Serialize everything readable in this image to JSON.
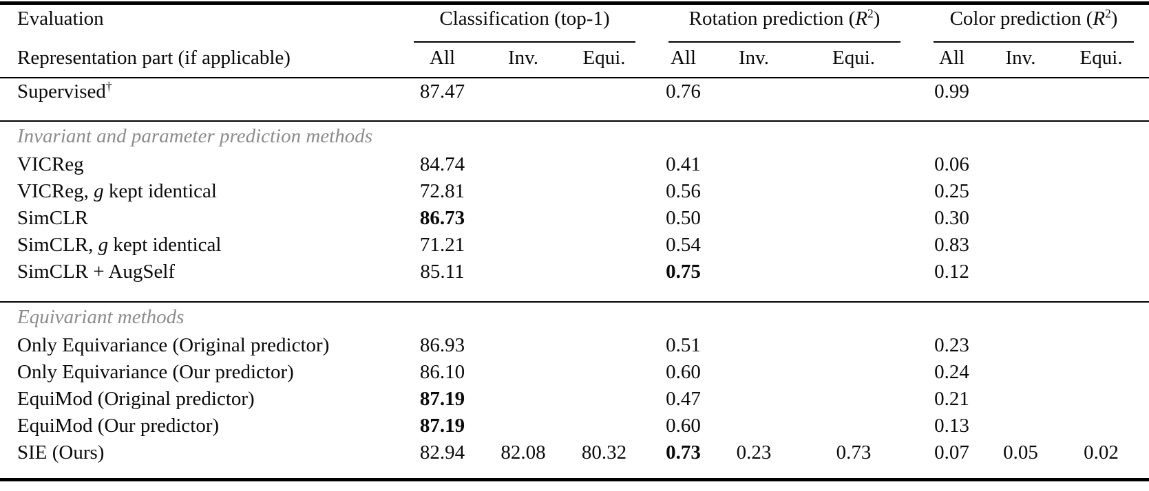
{
  "colors": {
    "background": "#ffffff",
    "text": "#0a0a0a",
    "section_text": "#8c8c8c",
    "rule": "#000000"
  },
  "table": {
    "header": {
      "row1_label": "Evaluation",
      "row2_label": "Representation part (if applicable)",
      "groups": [
        {
          "label_spans": [
            {
              "t": "Classification (top-1)"
            }
          ],
          "sub": [
            "All",
            "Inv.",
            "Equi."
          ]
        },
        {
          "label_spans": [
            {
              "t": "Rotation prediction ("
            },
            {
              "t": "R",
              "i": true
            },
            {
              "t": "2",
              "sup": true
            },
            {
              "t": ")"
            }
          ],
          "sub": [
            "All",
            "Inv.",
            "Equi."
          ]
        },
        {
          "label_spans": [
            {
              "t": "Color prediction ("
            },
            {
              "t": "R",
              "i": true
            },
            {
              "t": "2",
              "sup": true
            },
            {
              "t": ")"
            }
          ],
          "sub": [
            "All",
            "Inv.",
            "Equi."
          ]
        }
      ]
    },
    "rows": [
      {
        "type": "data",
        "rule_below": true,
        "label_spans": [
          {
            "t": "Supervised"
          },
          {
            "t": "†",
            "sup": true
          }
        ],
        "values": [
          {
            "v": "87.47"
          },
          {},
          {},
          {
            "v": "0.76"
          },
          {},
          {},
          {
            "v": "0.99"
          },
          {},
          {}
        ]
      },
      {
        "type": "section",
        "label": "Invariant and parameter prediction methods"
      },
      {
        "type": "data",
        "label_spans": [
          {
            "t": "VICReg"
          }
        ],
        "values": [
          {
            "v": "84.74"
          },
          {},
          {},
          {
            "v": "0.41"
          },
          {},
          {},
          {
            "v": "0.06"
          },
          {},
          {}
        ]
      },
      {
        "type": "data",
        "label_spans": [
          {
            "t": "VICReg, "
          },
          {
            "t": "g",
            "i": true
          },
          {
            "t": " kept identical"
          }
        ],
        "values": [
          {
            "v": "72.81"
          },
          {},
          {},
          {
            "v": "0.56"
          },
          {},
          {},
          {
            "v": "0.25"
          },
          {},
          {}
        ]
      },
      {
        "type": "data",
        "label_spans": [
          {
            "t": "SimCLR"
          }
        ],
        "values": [
          {
            "v": "86.73",
            "b": true
          },
          {},
          {},
          {
            "v": "0.50"
          },
          {},
          {},
          {
            "v": "0.30"
          },
          {},
          {}
        ]
      },
      {
        "type": "data",
        "label_spans": [
          {
            "t": "SimCLR, "
          },
          {
            "t": "g",
            "i": true
          },
          {
            "t": " kept identical"
          }
        ],
        "values": [
          {
            "v": "71.21"
          },
          {},
          {},
          {
            "v": "0.54"
          },
          {},
          {},
          {
            "v": "0.83"
          },
          {},
          {}
        ]
      },
      {
        "type": "data",
        "rule_below": true,
        "label_spans": [
          {
            "t": "SimCLR + AugSelf"
          }
        ],
        "values": [
          {
            "v": "85.11"
          },
          {},
          {},
          {
            "v": "0.75",
            "b": true
          },
          {},
          {},
          {
            "v": "0.12"
          },
          {},
          {}
        ]
      },
      {
        "type": "section",
        "label": "Equivariant methods"
      },
      {
        "type": "data",
        "label_spans": [
          {
            "t": "Only Equivariance (Original predictor)"
          }
        ],
        "values": [
          {
            "v": "86.93"
          },
          {},
          {},
          {
            "v": "0.51"
          },
          {},
          {},
          {
            "v": "0.23"
          },
          {},
          {}
        ]
      },
      {
        "type": "data",
        "label_spans": [
          {
            "t": "Only Equivariance (Our predictor)"
          }
        ],
        "values": [
          {
            "v": "86.10"
          },
          {},
          {},
          {
            "v": "0.60"
          },
          {},
          {},
          {
            "v": "0.24"
          },
          {},
          {}
        ]
      },
      {
        "type": "data",
        "label_spans": [
          {
            "t": "EquiMod (Original predictor)"
          }
        ],
        "values": [
          {
            "v": "87.19",
            "b": true
          },
          {},
          {},
          {
            "v": "0.47"
          },
          {},
          {},
          {
            "v": "0.21"
          },
          {},
          {}
        ]
      },
      {
        "type": "data",
        "label_spans": [
          {
            "t": "EquiMod (Our predictor)"
          }
        ],
        "values": [
          {
            "v": "87.19",
            "b": true
          },
          {},
          {},
          {
            "v": "0.60"
          },
          {},
          {},
          {
            "v": "0.13"
          },
          {},
          {}
        ]
      },
      {
        "type": "data",
        "last": true,
        "label_spans": [
          {
            "t": "SIE (Ours)"
          }
        ],
        "values": [
          {
            "v": "82.94"
          },
          {
            "v": "82.08"
          },
          {
            "v": "80.32"
          },
          {
            "v": "0.73",
            "b": true
          },
          {
            "v": "0.23"
          },
          {
            "v": "0.73"
          },
          {
            "v": "0.07"
          },
          {
            "v": "0.05"
          },
          {
            "v": "0.02"
          }
        ]
      }
    ]
  }
}
